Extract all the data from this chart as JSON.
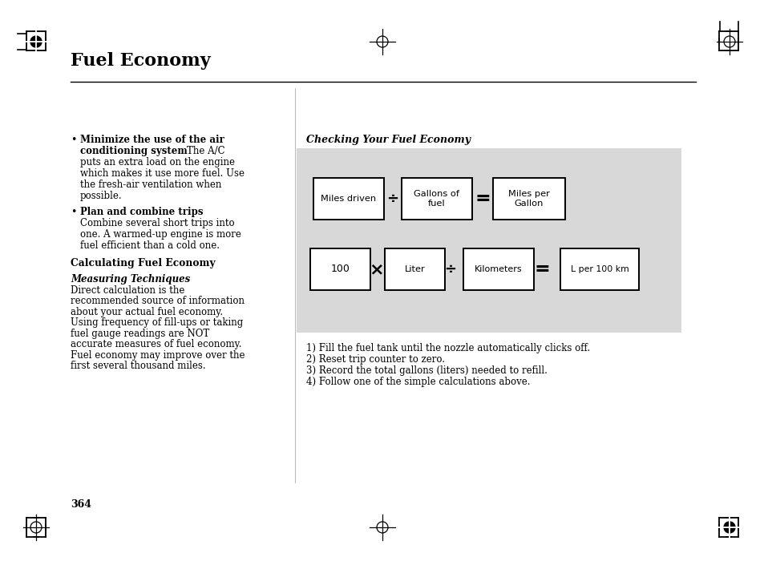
{
  "title": "Fuel Economy",
  "bg_color": "#ffffff",
  "page_number": "364",
  "diagram_bg": "#d8d8d8",
  "left_bullets": [
    {
      "bold": "Minimize the use of the air conditioning system",
      "normal": "    The A/C puts an extra load on the engine which makes it use more fuel. Use the fresh-air ventilation when possible."
    },
    {
      "bold": "Plan and combine trips",
      "normal": "Combine several short trips into one. A warmed-up engine is more fuel efficient than a cold one."
    }
  ],
  "calc_heading": "Calculating Fuel Economy",
  "meas_heading": "Measuring Techniques",
  "body_lines": [
    "Direct calculation is the",
    "recommended source of information",
    "about your actual fuel economy.",
    "Using frequency of fill-ups or taking",
    "fuel gauge readings are NOT",
    "accurate measures of fuel economy.",
    "Fuel economy may improve over the",
    "first several thousand miles."
  ],
  "section_heading": "Checking Your Fuel Economy",
  "row1_boxes": [
    "Miles driven",
    "Gallons of\nfuel",
    "Miles per\nGallon"
  ],
  "row1_ops": [
    "÷",
    "="
  ],
  "row2_boxes": [
    "100",
    "Liter",
    "Kilometers",
    "L per 100 km"
  ],
  "row2_ops": [
    "×",
    "÷",
    "="
  ],
  "instructions": [
    "1) Fill the fuel tank until the nozzle automatically clicks off.",
    "2) Reset trip counter to zero.",
    "3) Record the total gallons (liters) needed to refill.",
    "4) Follow one of the simple calculations above."
  ]
}
